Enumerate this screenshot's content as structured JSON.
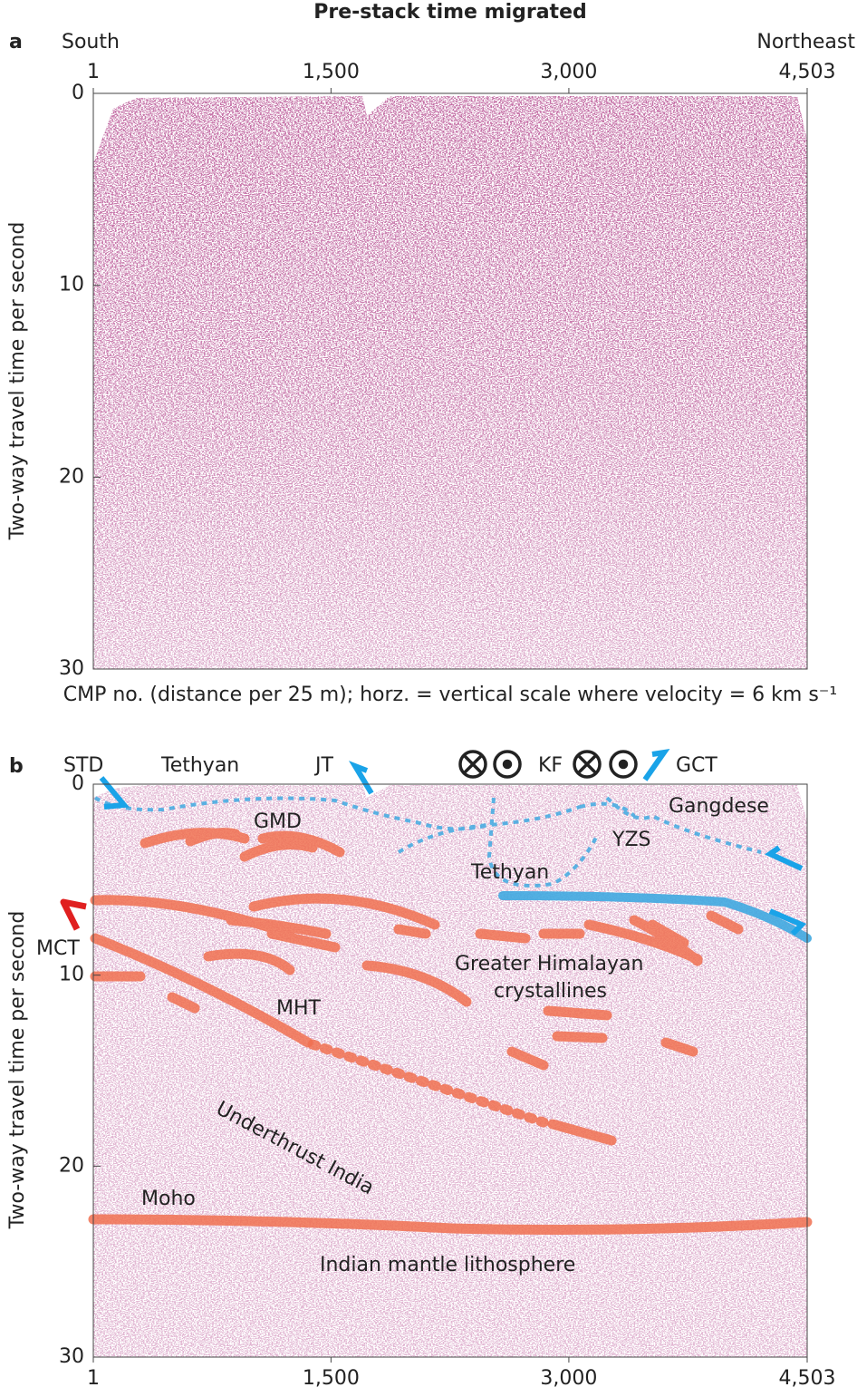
{
  "chart_data": [
    {
      "type": "seismic-section",
      "panel_label": "a",
      "title": "Pre-stack time migrated",
      "x_start_label": "South",
      "x_end_label": "Northeast",
      "xlabel": "CMP no. (distance per 25 m); horz. = vertical scale where velocity = 6 km s⁻¹",
      "ylabel": "Two-way travel time per second",
      "xlim": [
        1,
        4503
      ],
      "xticks": [
        1,
        {
          "value": 1500,
          "label": "1,500"
        },
        {
          "value": 3000,
          "label": "3,000"
        },
        {
          "value": 4503,
          "label": "4,503"
        }
      ],
      "ylim": [
        0,
        30
      ],
      "yticks": [
        0,
        10,
        20,
        30
      ],
      "color": "#8b2a62"
    },
    {
      "type": "seismic-section",
      "panel_label": "b",
      "ylabel": "Two-way travel time per second",
      "xlim": [
        1,
        4503
      ],
      "xticks": [
        1,
        {
          "value": 1500,
          "label": "1,500"
        },
        {
          "value": 3000,
          "label": "3,000"
        },
        {
          "value": 4503,
          "label": "4,503"
        }
      ],
      "ylim": [
        0,
        30
      ],
      "yticks": [
        0,
        10,
        20,
        30
      ],
      "color": "#b07090",
      "annotations": [
        "STD",
        "Tethyan",
        "JT",
        "KF",
        "GCT",
        "Gangdese",
        "GMD",
        "YZS",
        "Tethyan",
        "MCT",
        "Greater Himalayan",
        "crystallines",
        "MHT",
        "Underthrust India",
        "Moho",
        "Indian mantle lithosphere"
      ]
    }
  ]
}
